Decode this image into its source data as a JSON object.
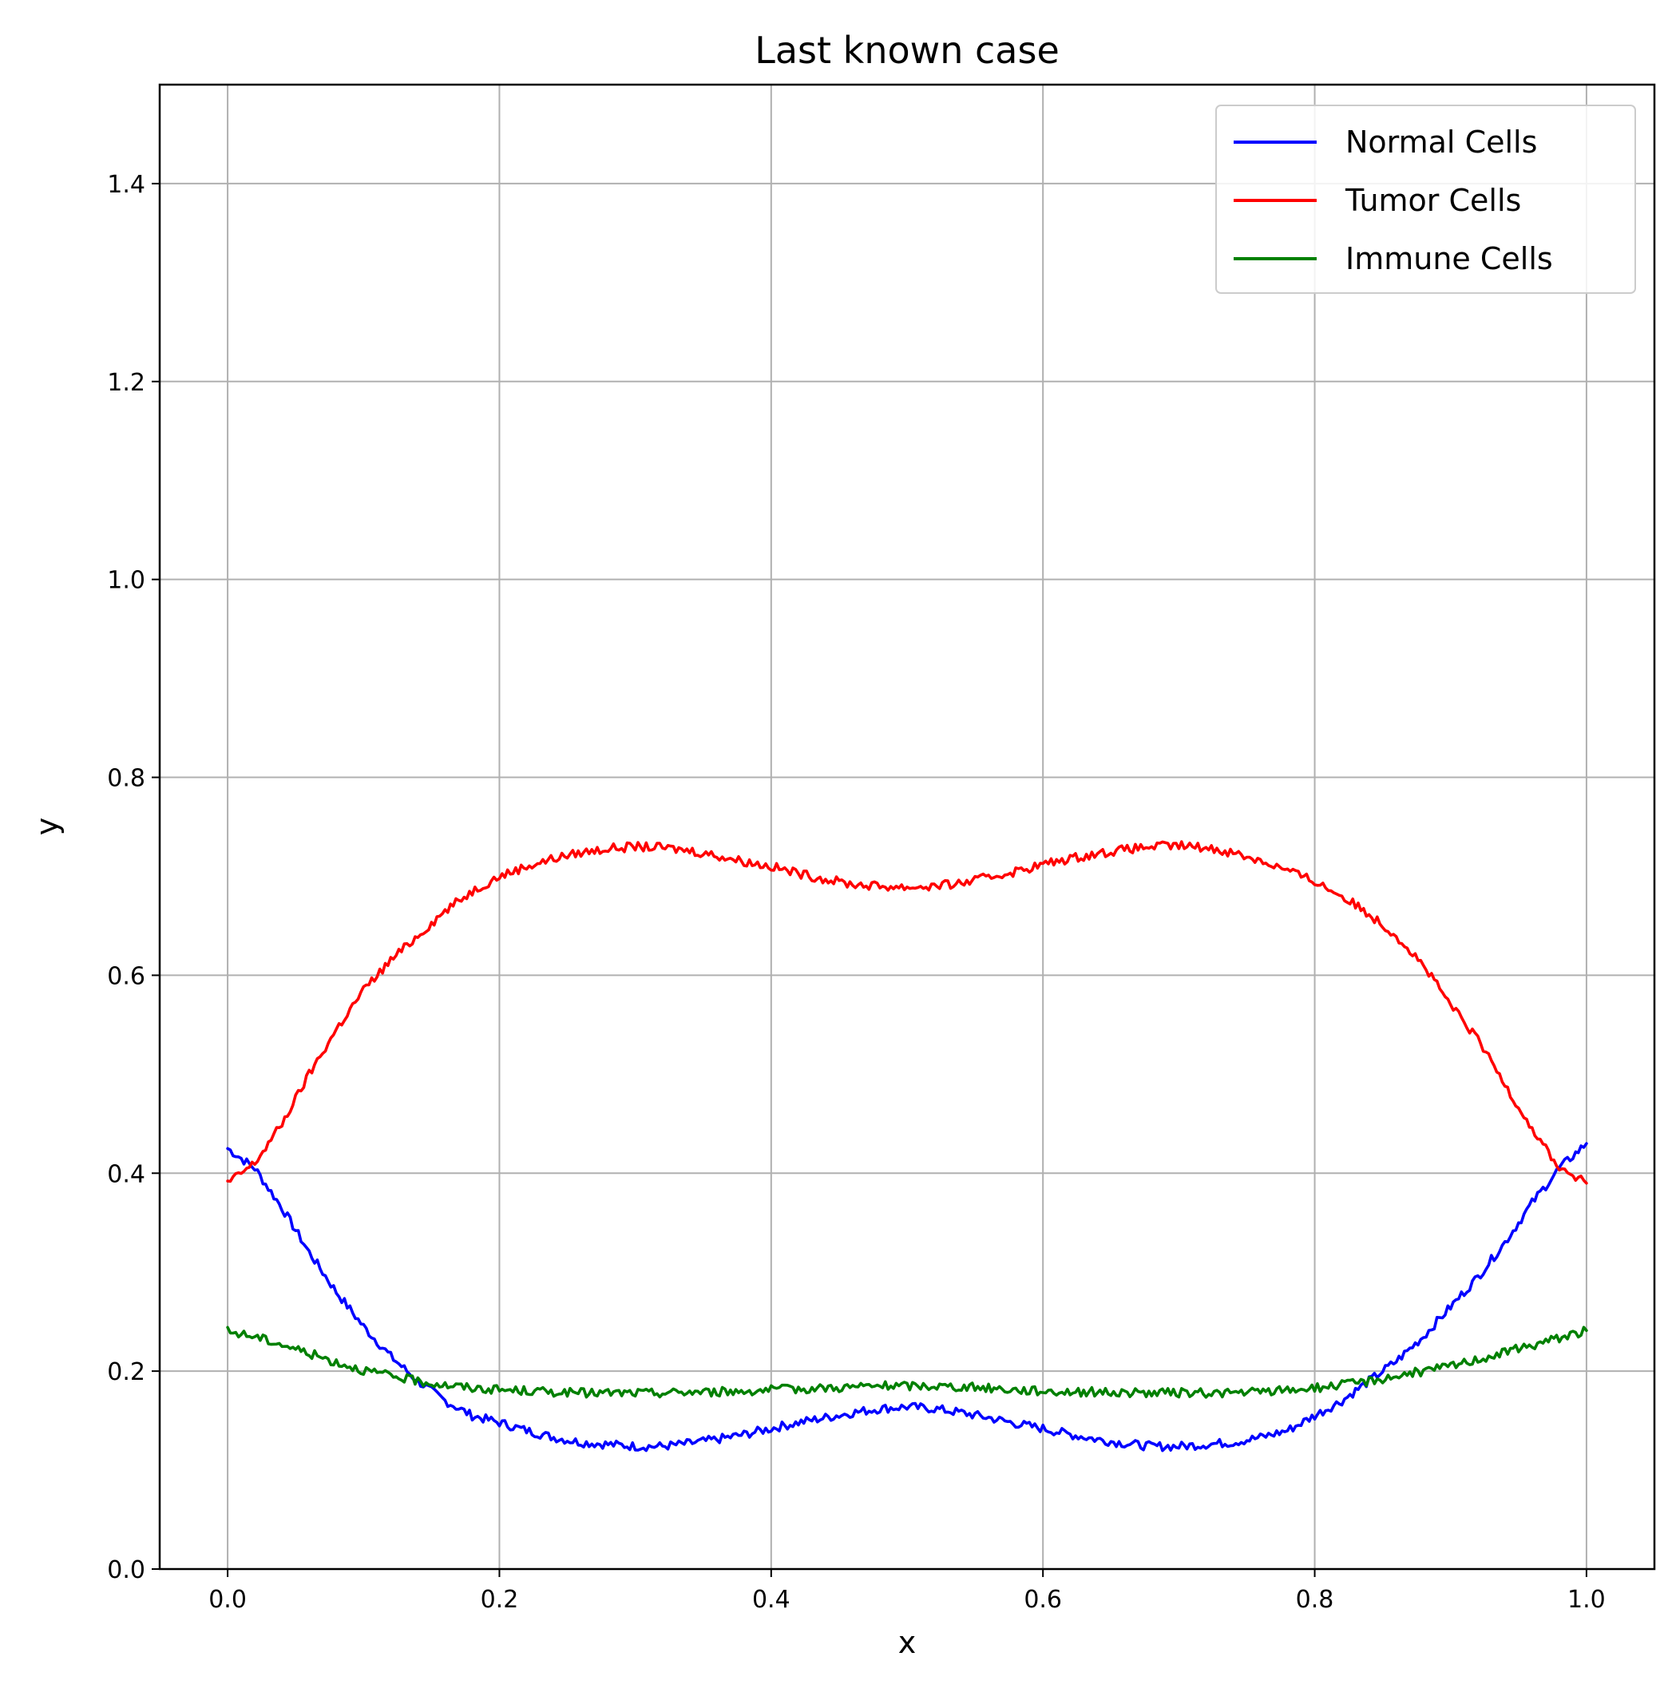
{
  "chart_data": {
    "type": "line",
    "title": "Last known case",
    "xlabel": "x",
    "ylabel": "y",
    "xlim": [
      -0.05,
      1.05
    ],
    "ylim": [
      0.0,
      1.5
    ],
    "xticks": [
      "0.0",
      "0.2",
      "0.4",
      "0.6",
      "0.8",
      "1.0"
    ],
    "yticks": [
      "0.0",
      "0.2",
      "0.4",
      "0.6",
      "0.8",
      "1.0",
      "1.2",
      "1.4"
    ],
    "grid": true,
    "legend_position": "top-right",
    "x": [
      0.0,
      0.02,
      0.04,
      0.06,
      0.08,
      0.1,
      0.12,
      0.14,
      0.16,
      0.18,
      0.2,
      0.22,
      0.24,
      0.26,
      0.28,
      0.3,
      0.32,
      0.34,
      0.36,
      0.38,
      0.4,
      0.42,
      0.44,
      0.46,
      0.48,
      0.5,
      0.52,
      0.54,
      0.56,
      0.58,
      0.6,
      0.62,
      0.64,
      0.66,
      0.68,
      0.7,
      0.72,
      0.74,
      0.76,
      0.78,
      0.8,
      0.82,
      0.84,
      0.86,
      0.88,
      0.9,
      0.92,
      0.94,
      0.96,
      0.98,
      1.0
    ],
    "series": [
      {
        "name": "Normal Cells",
        "color": "#0000ff",
        "values": [
          0.425,
          0.405,
          0.365,
          0.32,
          0.28,
          0.245,
          0.215,
          0.19,
          0.17,
          0.155,
          0.148,
          0.14,
          0.133,
          0.128,
          0.126,
          0.124,
          0.124,
          0.127,
          0.131,
          0.136,
          0.142,
          0.148,
          0.153,
          0.158,
          0.162,
          0.164,
          0.162,
          0.158,
          0.153,
          0.147,
          0.142,
          0.136,
          0.131,
          0.127,
          0.124,
          0.124,
          0.126,
          0.128,
          0.133,
          0.14,
          0.155,
          0.17,
          0.19,
          0.21,
          0.235,
          0.265,
          0.295,
          0.33,
          0.37,
          0.405,
          0.43
        ]
      },
      {
        "name": "Tumor Cells",
        "color": "#ff0000",
        "values": [
          0.39,
          0.41,
          0.45,
          0.5,
          0.545,
          0.585,
          0.615,
          0.64,
          0.665,
          0.685,
          0.7,
          0.71,
          0.718,
          0.724,
          0.728,
          0.73,
          0.729,
          0.726,
          0.721,
          0.715,
          0.71,
          0.703,
          0.697,
          0.692,
          0.69,
          0.689,
          0.69,
          0.693,
          0.699,
          0.705,
          0.712,
          0.718,
          0.723,
          0.727,
          0.73,
          0.731,
          0.729,
          0.724,
          0.716,
          0.706,
          0.695,
          0.68,
          0.662,
          0.64,
          0.61,
          0.57,
          0.535,
          0.49,
          0.445,
          0.405,
          0.39
        ]
      },
      {
        "name": "Immune Cells",
        "color": "#008000",
        "values": [
          0.24,
          0.235,
          0.227,
          0.218,
          0.209,
          0.201,
          0.195,
          0.19,
          0.186,
          0.183,
          0.181,
          0.18,
          0.179,
          0.178,
          0.178,
          0.178,
          0.178,
          0.179,
          0.179,
          0.18,
          0.181,
          0.182,
          0.183,
          0.184,
          0.185,
          0.185,
          0.185,
          0.184,
          0.183,
          0.181,
          0.18,
          0.179,
          0.179,
          0.178,
          0.178,
          0.178,
          0.178,
          0.178,
          0.179,
          0.181,
          0.183,
          0.186,
          0.19,
          0.195,
          0.2,
          0.205,
          0.212,
          0.219,
          0.226,
          0.234,
          0.241
        ]
      }
    ]
  }
}
